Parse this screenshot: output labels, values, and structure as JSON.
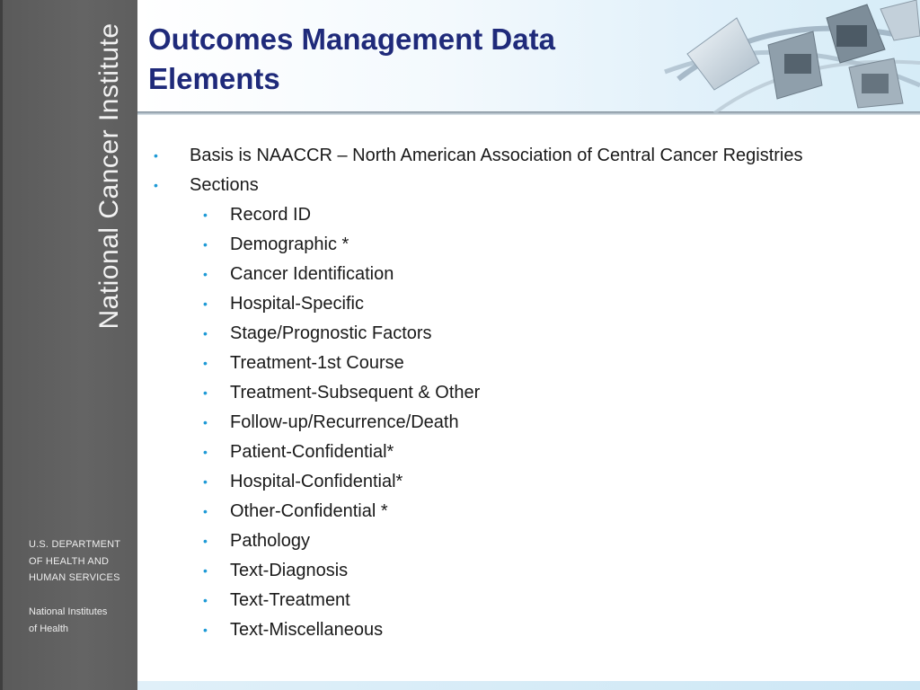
{
  "sidebar": {
    "brand": "National Cancer Institute",
    "hhs_lines": [
      "U.S. DEPARTMENT",
      "OF HEALTH AND",
      "HUMAN SERVICES"
    ],
    "nih_lines": [
      "National Institutes",
      "of Health"
    ]
  },
  "slide": {
    "title_lines": [
      "Outcomes Management Data",
      "Elements"
    ],
    "bullets": [
      {
        "level": 1,
        "text": "Basis is NAACCR – North American Association of Central Cancer Registries"
      },
      {
        "level": 1,
        "text": "Sections"
      },
      {
        "level": 2,
        "text": "Record ID"
      },
      {
        "level": 2,
        "text": "Demographic *"
      },
      {
        "level": 2,
        "text": "Cancer Identification"
      },
      {
        "level": 2,
        "text": "Hospital-Specific"
      },
      {
        "level": 2,
        "text": "Stage/Prognostic Factors"
      },
      {
        "level": 2,
        "text": "Treatment-1st Course"
      },
      {
        "level": 2,
        "text": "Treatment-Subsequent & Other"
      },
      {
        "level": 2,
        "text": "Follow-up/Recurrence/Death"
      },
      {
        "level": 2,
        "text": "Patient-Confidential*"
      },
      {
        "level": 2,
        "text": "Hospital-Confidential*"
      },
      {
        "level": 2,
        "text": "Other-Confidential *"
      },
      {
        "level": 2,
        "text": "Pathology"
      },
      {
        "level": 2,
        "text": "Text-Diagnosis"
      },
      {
        "level": 2,
        "text": "Text-Treatment"
      },
      {
        "level": 2,
        "text": "Text-Miscellaneous"
      }
    ],
    "bullet_glyph": "•"
  },
  "colors": {
    "title": "#1f2a7a",
    "bullet": "#1e9ad6",
    "sidebar": "#606060"
  }
}
